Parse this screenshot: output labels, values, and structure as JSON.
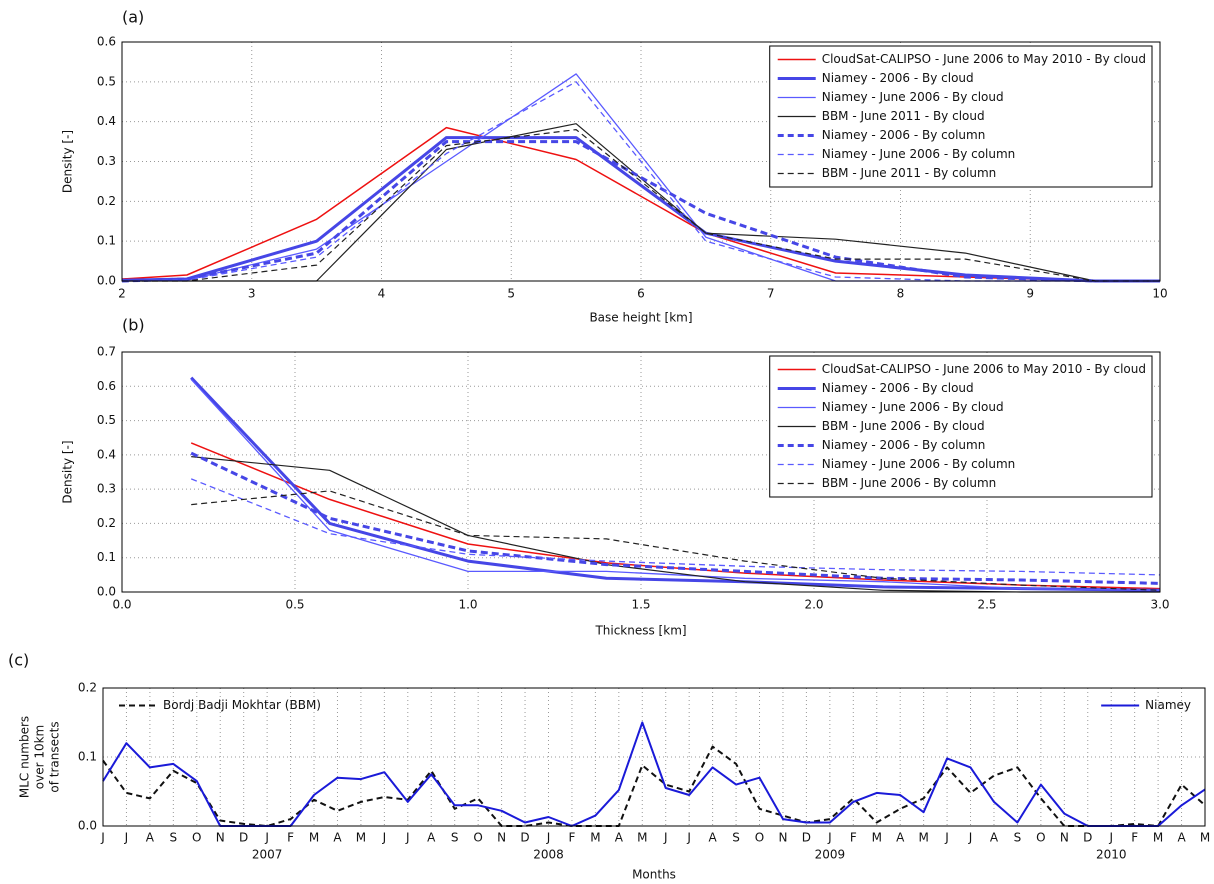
{
  "chart_data": [
    {
      "type": "line",
      "panel_label": "(a)",
      "xlabel": "Base height [km]",
      "ylabel": "Density [-]",
      "x": [
        2,
        2.5,
        3.5,
        4.5,
        5.5,
        6.5,
        7.5,
        8.5,
        9.5,
        10
      ],
      "xlim": [
        2,
        10
      ],
      "xticks": [
        2,
        3,
        4,
        5,
        6,
        7,
        8,
        9,
        10
      ],
      "ylim": [
        0,
        0.6
      ],
      "yticks": [
        {
          "value": 0,
          "label": "0.0"
        },
        0.1,
        0.2,
        0.3,
        0.4,
        0.5,
        0.6
      ],
      "grid": true,
      "legend": "upper right",
      "series": [
        {
          "name": "CloudSat-CALIPSO - June 2006 to May 2010 - By cloud",
          "color": "#ee1111",
          "width": 1.5,
          "dashed": false,
          "values": [
            0.005,
            0.015,
            0.155,
            0.385,
            0.305,
            0.12,
            0.02,
            0.01,
            0,
            0
          ]
        },
        {
          "name": "Niamey - 2006 - By cloud",
          "color": "#4646e6",
          "width": 3,
          "dashed": false,
          "values": [
            0.002,
            0.005,
            0.1,
            0.36,
            0.36,
            0.12,
            0.05,
            0.015,
            0,
            0
          ]
        },
        {
          "name": "Niamey - June 2006 - By cloud",
          "color": "#5a5aff",
          "width": 1.3,
          "dashed": false,
          "values": [
            0,
            0.002,
            0.08,
            0.3,
            0.52,
            0.11,
            0,
            0,
            0,
            0
          ]
        },
        {
          "name": "BBM - June 2011 - By cloud",
          "color": "#222222",
          "width": 1.2,
          "dashed": false,
          "values": [
            0,
            0,
            0,
            0.33,
            0.395,
            0.12,
            0.105,
            0.07,
            0,
            0
          ]
        },
        {
          "name": "Niamey - 2006 - By column",
          "color": "#4646e6",
          "width": 3,
          "dashed": true,
          "values": [
            0,
            0.005,
            0.07,
            0.35,
            0.35,
            0.17,
            0.06,
            0.01,
            0,
            0
          ]
        },
        {
          "name": "Niamey - June 2006 - By column",
          "color": "#5a5aff",
          "width": 1.3,
          "dashed": true,
          "values": [
            0,
            0.002,
            0.06,
            0.32,
            0.5,
            0.1,
            0.01,
            0,
            0,
            0
          ]
        },
        {
          "name": "BBM - June 2011 - By column",
          "color": "#222222",
          "width": 1.2,
          "dashed": true,
          "values": [
            0,
            0,
            0.04,
            0.34,
            0.38,
            0.12,
            0.055,
            0.055,
            0,
            0
          ]
        }
      ]
    },
    {
      "type": "line",
      "panel_label": "(b)",
      "xlabel": "Thickness [km]",
      "ylabel": "Density [-]",
      "x": [
        0.2,
        0.6,
        1.0,
        1.4,
        1.8,
        2.2,
        2.6,
        3.0
      ],
      "xlim": [
        0,
        3
      ],
      "xticks": [
        {
          "value": 0,
          "label": "0.0"
        },
        0.5,
        {
          "value": 1,
          "label": "1.0"
        },
        1.5,
        {
          "value": 2,
          "label": "2.0"
        },
        2.5,
        {
          "value": 3,
          "label": "3.0"
        }
      ],
      "ylim": [
        0,
        0.7
      ],
      "yticks": [
        {
          "value": 0,
          "label": "0.0"
        },
        0.1,
        0.2,
        0.3,
        0.4,
        0.5,
        0.6,
        0.7
      ],
      "grid": true,
      "legend": "upper right",
      "series": [
        {
          "name": "CloudSat-CALIPSO - June 2006 to May 2010 - By cloud",
          "color": "#ee1111",
          "width": 1.5,
          "dashed": false,
          "values": [
            0.435,
            0.27,
            0.14,
            0.085,
            0.055,
            0.035,
            0.02,
            0.01
          ]
        },
        {
          "name": "Niamey - 2006 - By cloud",
          "color": "#4646e6",
          "width": 3,
          "dashed": false,
          "values": [
            0.625,
            0.2,
            0.09,
            0.04,
            0.03,
            0.015,
            0.01,
            0.005
          ]
        },
        {
          "name": "Niamey - June 2006 - By cloud",
          "color": "#5a5aff",
          "width": 1.3,
          "dashed": false,
          "values": [
            0.62,
            0.18,
            0.06,
            0.06,
            0.04,
            0.03,
            0.01,
            0.005
          ]
        },
        {
          "name": "BBM - June 2006 - By cloud",
          "color": "#222222",
          "width": 1.2,
          "dashed": false,
          "values": [
            0.395,
            0.355,
            0.165,
            0.08,
            0.03,
            0.005,
            0,
            0
          ]
        },
        {
          "name": "Niamey - 2006 - By column",
          "color": "#4646e6",
          "width": 3,
          "dashed": true,
          "values": [
            0.405,
            0.215,
            0.12,
            0.08,
            0.06,
            0.04,
            0.035,
            0.025
          ]
        },
        {
          "name": "Niamey - June 2006 - By column",
          "color": "#5a5aff",
          "width": 1.3,
          "dashed": true,
          "values": [
            0.33,
            0.17,
            0.11,
            0.09,
            0.075,
            0.065,
            0.06,
            0.05
          ]
        },
        {
          "name": "BBM - June 2006 - By column",
          "color": "#222222",
          "width": 1.2,
          "dashed": true,
          "values": [
            0.255,
            0.295,
            0.165,
            0.155,
            0.09,
            0.04,
            0.02,
            0.005
          ]
        }
      ]
    },
    {
      "type": "line",
      "panel_label": "(c)",
      "xlabel": "Months",
      "ylabel": [
        "MLC numbers",
        "over 10km",
        "of transects"
      ],
      "categories": [
        "J",
        "J",
        "A",
        "S",
        "O",
        "N",
        "D",
        "J",
        "F",
        "M",
        "A",
        "M",
        "J",
        "J",
        "A",
        "S",
        "O",
        "N",
        "D",
        "J",
        "F",
        "M",
        "A",
        "M",
        "J",
        "J",
        "A",
        "S",
        "O",
        "N",
        "D",
        "J",
        "F",
        "M",
        "A",
        "M",
        "J",
        "J",
        "A",
        "S",
        "O",
        "N",
        "D",
        "J",
        "F",
        "M",
        "A",
        "M"
      ],
      "year_ticks": [
        {
          "value": 7,
          "label": "2007"
        },
        {
          "value": 19,
          "label": "2008"
        },
        {
          "value": 31,
          "label": "2009"
        },
        {
          "value": 43,
          "label": "2010"
        }
      ],
      "ylim": [
        0,
        0.2
      ],
      "yticks": [
        {
          "value": 0,
          "label": "0.0"
        },
        0.1,
        0.2
      ],
      "grid": true,
      "series": [
        {
          "name": "Bordj Badji Mokhtar (BBM)",
          "color": "#111111",
          "width": 2,
          "dashed": true,
          "legend": "upper left",
          "values": [
            0.095,
            0.048,
            0.04,
            0.08,
            0.062,
            0.008,
            0.003,
            0,
            0.01,
            0.038,
            0.022,
            0.035,
            0.042,
            0.038,
            0.08,
            0.025,
            0.04,
            0,
            0,
            0.005,
            0,
            0,
            0,
            0.088,
            0.06,
            0.05,
            0.115,
            0.09,
            0.025,
            0.015,
            0.005,
            0.01,
            0.04,
            0.005,
            0.025,
            0.04,
            0.085,
            0.048,
            0.073,
            0.085,
            0.04,
            0,
            0,
            0,
            0.003,
            0,
            0.06,
            0.03
          ]
        },
        {
          "name": "Niamey",
          "color": "#1a1ad8",
          "width": 2,
          "dashed": false,
          "legend": "upper right",
          "values": [
            0.065,
            0.12,
            0.085,
            0.09,
            0.065,
            0,
            0,
            0,
            0,
            0.045,
            0.07,
            0.068,
            0.078,
            0.035,
            0.075,
            0.03,
            0.03,
            0.022,
            0.005,
            0.013,
            0,
            0.015,
            0.052,
            0.15,
            0.055,
            0.045,
            0.085,
            0.06,
            0.07,
            0.01,
            0.005,
            0.005,
            0.035,
            0.048,
            0.045,
            0.02,
            0.098,
            0.085,
            0.035,
            0.005,
            0.06,
            0.018,
            0,
            0,
            0,
            0,
            0.03,
            0.053
          ]
        }
      ]
    }
  ]
}
